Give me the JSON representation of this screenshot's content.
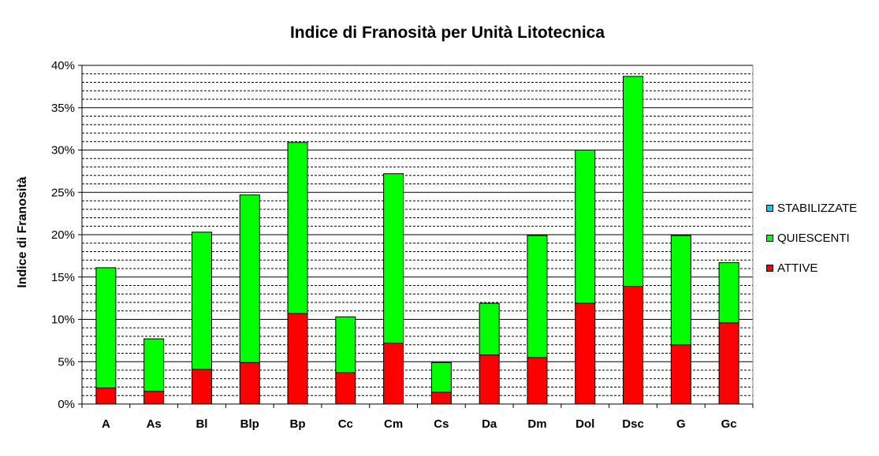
{
  "chart_data": {
    "type": "bar",
    "stacked": true,
    "title": "Indice di Franosità per Unità Litotecnica",
    "ylabel": "Indice di Franosità",
    "xlabel": "",
    "ylim": [
      0,
      40
    ],
    "y_ticks": [
      "0%",
      "5%",
      "10%",
      "15%",
      "20%",
      "25%",
      "30%",
      "35%",
      "40%"
    ],
    "grid": true,
    "legend_position": "right",
    "categories": [
      "A",
      "As",
      "Bl",
      "Blp",
      "Bp",
      "Cc",
      "Cm",
      "Cs",
      "Da",
      "Dm",
      "Dol",
      "Dsc",
      "G",
      "Gc"
    ],
    "series": [
      {
        "name": "ATTIVE",
        "color": "#ff0000",
        "values": [
          1.9,
          1.5,
          4.1,
          4.9,
          10.7,
          3.7,
          7.2,
          1.4,
          5.8,
          5.5,
          11.9,
          13.9,
          7.0,
          9.6
        ]
      },
      {
        "name": "QUIESCENTI",
        "color": "#00ff00",
        "values": [
          14.2,
          6.2,
          16.2,
          19.8,
          20.2,
          6.6,
          20.0,
          3.5,
          6.1,
          14.4,
          18.1,
          24.8,
          12.9,
          7.1
        ]
      },
      {
        "name": "STABILIZZATE",
        "color": "#00ccff",
        "values": [
          0,
          0,
          0,
          0,
          0,
          0,
          0,
          0,
          0,
          0,
          0,
          0,
          0,
          0
        ]
      }
    ]
  }
}
